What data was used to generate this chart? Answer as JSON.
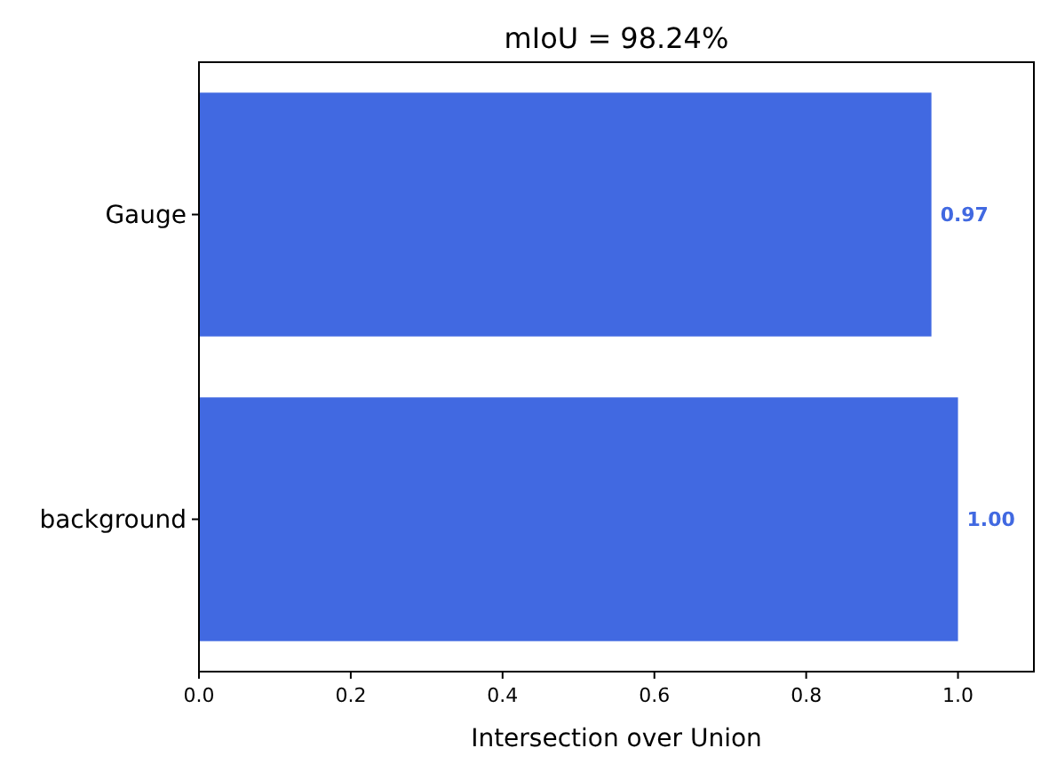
{
  "chart_data": {
    "type": "bar",
    "orientation": "horizontal",
    "title": "mIoU = 98.24%",
    "xlabel": "Intersection over Union",
    "categories": [
      "Gauge",
      "background"
    ],
    "values": [
      0.965,
      1.0
    ],
    "value_labels": [
      "0.97",
      "1.00"
    ],
    "color": "#4169e1",
    "xlim": [
      0,
      1.1
    ],
    "xticks": [
      {
        "value": 0,
        "label": "0.0"
      },
      {
        "value": 0.2,
        "label": "0.2"
      },
      {
        "value": 0.4,
        "label": "0.4"
      },
      {
        "value": 0.6,
        "label": "0.6"
      },
      {
        "value": 0.8,
        "label": "0.8"
      },
      {
        "value": 1,
        "label": "1.0"
      }
    ],
    "grid": false
  }
}
